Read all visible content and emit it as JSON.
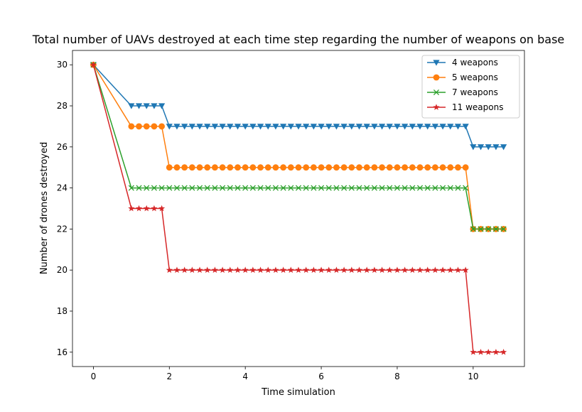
{
  "chart_data": {
    "type": "line",
    "title": "Total number of UAVs destroyed at each time step regarding the number of weapons on base",
    "xlabel": "Time simulation",
    "ylabel": "Number of drones destroyed",
    "xlim": [
      -0.55,
      11.35
    ],
    "ylim": [
      15.3,
      30.7
    ],
    "xticks": [
      0,
      2,
      4,
      6,
      8,
      10
    ],
    "yticks": [
      16,
      18,
      20,
      22,
      24,
      26,
      28,
      30
    ],
    "grid": false,
    "legend_position": "top-right",
    "series": [
      {
        "name": "4 weapons",
        "color": "#1f77b4",
        "marker": "triangle-down",
        "x": [
          0,
          1,
          1.2,
          1.4,
          1.6,
          1.8,
          2,
          2.2,
          2.4,
          2.6,
          2.8,
          3,
          3.2,
          3.4,
          3.6,
          3.8,
          4,
          4.2,
          4.4,
          4.6,
          4.8,
          5,
          5.2,
          5.4,
          5.6,
          5.8,
          6,
          6.2,
          6.4,
          6.6,
          6.8,
          7,
          7.2,
          7.4,
          7.6,
          7.8,
          8,
          8.2,
          8.4,
          8.6,
          8.8,
          9,
          9.2,
          9.4,
          9.6,
          9.8,
          10,
          10.2,
          10.4,
          10.6,
          10.8
        ],
        "y": [
          30,
          28,
          28,
          28,
          28,
          28,
          27,
          27,
          27,
          27,
          27,
          27,
          27,
          27,
          27,
          27,
          27,
          27,
          27,
          27,
          27,
          27,
          27,
          27,
          27,
          27,
          27,
          27,
          27,
          27,
          27,
          27,
          27,
          27,
          27,
          27,
          27,
          27,
          27,
          27,
          27,
          27,
          27,
          27,
          27,
          27,
          26,
          26,
          26,
          26,
          26
        ]
      },
      {
        "name": "5 weapons",
        "color": "#ff7f0e",
        "marker": "circle",
        "x": [
          0,
          1,
          1.2,
          1.4,
          1.6,
          1.8,
          2,
          2.2,
          2.4,
          2.6,
          2.8,
          3,
          3.2,
          3.4,
          3.6,
          3.8,
          4,
          4.2,
          4.4,
          4.6,
          4.8,
          5,
          5.2,
          5.4,
          5.6,
          5.8,
          6,
          6.2,
          6.4,
          6.6,
          6.8,
          7,
          7.2,
          7.4,
          7.6,
          7.8,
          8,
          8.2,
          8.4,
          8.6,
          8.8,
          9,
          9.2,
          9.4,
          9.6,
          9.8,
          10,
          10.2,
          10.4,
          10.6,
          10.8
        ],
        "y": [
          30,
          27,
          27,
          27,
          27,
          27,
          25,
          25,
          25,
          25,
          25,
          25,
          25,
          25,
          25,
          25,
          25,
          25,
          25,
          25,
          25,
          25,
          25,
          25,
          25,
          25,
          25,
          25,
          25,
          25,
          25,
          25,
          25,
          25,
          25,
          25,
          25,
          25,
          25,
          25,
          25,
          25,
          25,
          25,
          25,
          25,
          22,
          22,
          22,
          22,
          22
        ]
      },
      {
        "name": "7 weapons",
        "color": "#2ca02c",
        "marker": "x",
        "x": [
          0,
          1,
          1.2,
          1.4,
          1.6,
          1.8,
          2,
          2.2,
          2.4,
          2.6,
          2.8,
          3,
          3.2,
          3.4,
          3.6,
          3.8,
          4,
          4.2,
          4.4,
          4.6,
          4.8,
          5,
          5.2,
          5.4,
          5.6,
          5.8,
          6,
          6.2,
          6.4,
          6.6,
          6.8,
          7,
          7.2,
          7.4,
          7.6,
          7.8,
          8,
          8.2,
          8.4,
          8.6,
          8.8,
          9,
          9.2,
          9.4,
          9.6,
          9.8,
          10,
          10.2,
          10.4,
          10.6,
          10.8
        ],
        "y": [
          30,
          24,
          24,
          24,
          24,
          24,
          24,
          24,
          24,
          24,
          24,
          24,
          24,
          24,
          24,
          24,
          24,
          24,
          24,
          24,
          24,
          24,
          24,
          24,
          24,
          24,
          24,
          24,
          24,
          24,
          24,
          24,
          24,
          24,
          24,
          24,
          24,
          24,
          24,
          24,
          24,
          24,
          24,
          24,
          24,
          24,
          22,
          22,
          22,
          22,
          22
        ]
      },
      {
        "name": "11 weapons",
        "color": "#d62728",
        "marker": "star",
        "x": [
          0,
          1,
          1.2,
          1.4,
          1.6,
          1.8,
          2,
          2.2,
          2.4,
          2.6,
          2.8,
          3,
          3.2,
          3.4,
          3.6,
          3.8,
          4,
          4.2,
          4.4,
          4.6,
          4.8,
          5,
          5.2,
          5.4,
          5.6,
          5.8,
          6,
          6.2,
          6.4,
          6.6,
          6.8,
          7,
          7.2,
          7.4,
          7.6,
          7.8,
          8,
          8.2,
          8.4,
          8.6,
          8.8,
          9,
          9.2,
          9.4,
          9.6,
          9.8,
          10,
          10.2,
          10.4,
          10.6,
          10.8
        ],
        "y": [
          30,
          23,
          23,
          23,
          23,
          23,
          20,
          20,
          20,
          20,
          20,
          20,
          20,
          20,
          20,
          20,
          20,
          20,
          20,
          20,
          20,
          20,
          20,
          20,
          20,
          20,
          20,
          20,
          20,
          20,
          20,
          20,
          20,
          20,
          20,
          20,
          20,
          20,
          20,
          20,
          20,
          20,
          20,
          20,
          20,
          20,
          16,
          16,
          16,
          16,
          16
        ]
      }
    ]
  }
}
